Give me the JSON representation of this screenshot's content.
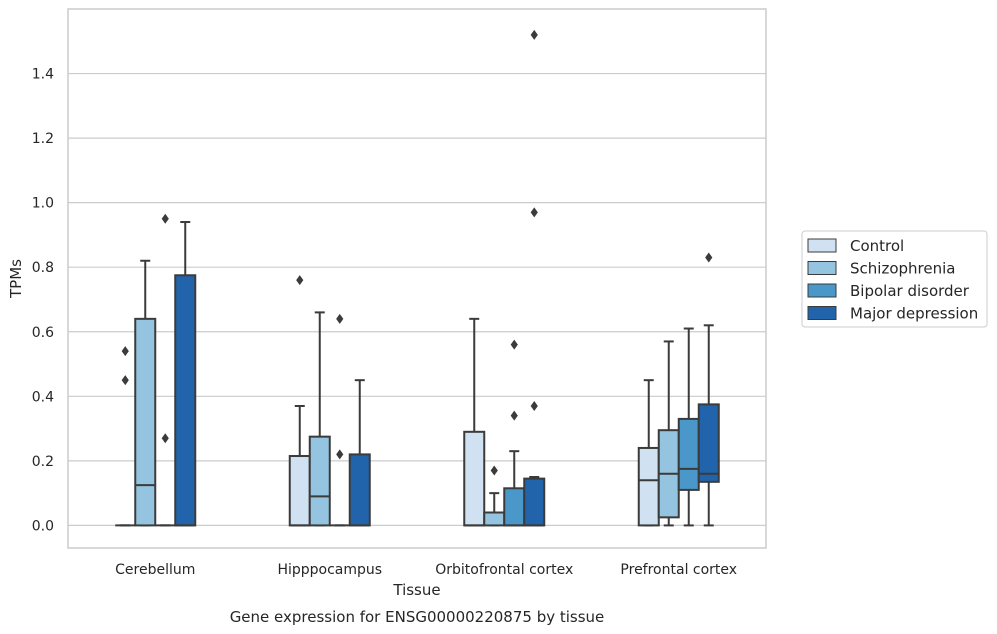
{
  "chart_data": {
    "type": "box",
    "caption": "Gene expression for ENSG00000220875 by tissue",
    "xlabel": "Tissue",
    "ylabel": "TPMs",
    "ylim": [
      -0.07,
      1.6
    ],
    "yticks": [
      0.0,
      0.2,
      0.4,
      0.6,
      0.8,
      1.0,
      1.2,
      1.4
    ],
    "ytick_labels": [
      "0.0",
      "0.2",
      "0.4",
      "0.6",
      "0.8",
      "1.0",
      "1.2",
      "1.4"
    ],
    "grid": "horizontal",
    "legend_position": "right",
    "categories": [
      "Cerebellum",
      "Hipppocampus",
      "Orbitofrontal cortex",
      "Prefrontal cortex"
    ],
    "series": [
      {
        "name": "Control",
        "color": "#d0e1f2",
        "boxes": [
          {
            "whisker_low": 0,
            "q1": 0,
            "median": 0,
            "q3": 0,
            "whisker_high": 0,
            "outliers": [
              0.45,
              0.54
            ]
          },
          {
            "whisker_low": 0,
            "q1": 0,
            "median": 0,
            "q3": 0.215,
            "whisker_high": 0.37,
            "outliers": [
              0.76
            ]
          },
          {
            "whisker_low": 0,
            "q1": 0,
            "median": 0,
            "q3": 0.29,
            "whisker_high": 0.64,
            "outliers": []
          },
          {
            "whisker_low": 0,
            "q1": 0,
            "median": 0.14,
            "q3": 0.24,
            "whisker_high": 0.45,
            "outliers": []
          }
        ]
      },
      {
        "name": "Schizophrenia",
        "color": "#94c4df",
        "boxes": [
          {
            "whisker_low": 0,
            "q1": 0,
            "median": 0.125,
            "q3": 0.64,
            "whisker_high": 0.82,
            "outliers": []
          },
          {
            "whisker_low": 0,
            "q1": 0,
            "median": 0.09,
            "q3": 0.275,
            "whisker_high": 0.66,
            "outliers": []
          },
          {
            "whisker_low": 0,
            "q1": 0,
            "median": 0.04,
            "q3": 0.04,
            "whisker_high": 0.1,
            "outliers": [
              0.17
            ]
          },
          {
            "whisker_low": 0,
            "q1": 0.025,
            "median": 0.16,
            "q3": 0.295,
            "whisker_high": 0.57,
            "outliers": []
          }
        ]
      },
      {
        "name": "Bipolar disorder",
        "color": "#4a98c9",
        "boxes": [
          {
            "whisker_low": 0,
            "q1": 0,
            "median": 0,
            "q3": 0,
            "whisker_high": 0,
            "outliers": [
              0.27,
              0.95
            ]
          },
          {
            "whisker_low": 0,
            "q1": 0,
            "median": 0,
            "q3": 0,
            "whisker_high": 0,
            "outliers": [
              0.22,
              0.64
            ]
          },
          {
            "whisker_low": 0,
            "q1": 0,
            "median": 0,
            "q3": 0.115,
            "whisker_high": 0.23,
            "outliers": [
              0.34,
              0.56
            ]
          },
          {
            "whisker_low": 0,
            "q1": 0.11,
            "median": 0.175,
            "q3": 0.33,
            "whisker_high": 0.61,
            "outliers": []
          }
        ]
      },
      {
        "name": "Major depression",
        "color": "#2164ab",
        "boxes": [
          {
            "whisker_low": 0,
            "q1": 0,
            "median": 0,
            "q3": 0.775,
            "whisker_high": 0.94,
            "outliers": []
          },
          {
            "whisker_low": 0,
            "q1": 0,
            "median": 0,
            "q3": 0.22,
            "whisker_high": 0.45,
            "outliers": []
          },
          {
            "whisker_low": 0,
            "q1": 0,
            "median": 0,
            "q3": 0.145,
            "whisker_high": 0.15,
            "outliers": [
              0.37,
              0.97,
              1.52
            ]
          },
          {
            "whisker_low": 0,
            "q1": 0.135,
            "median": 0.16,
            "q3": 0.375,
            "whisker_high": 0.62,
            "outliers": [
              0.83
            ]
          }
        ]
      }
    ]
  }
}
